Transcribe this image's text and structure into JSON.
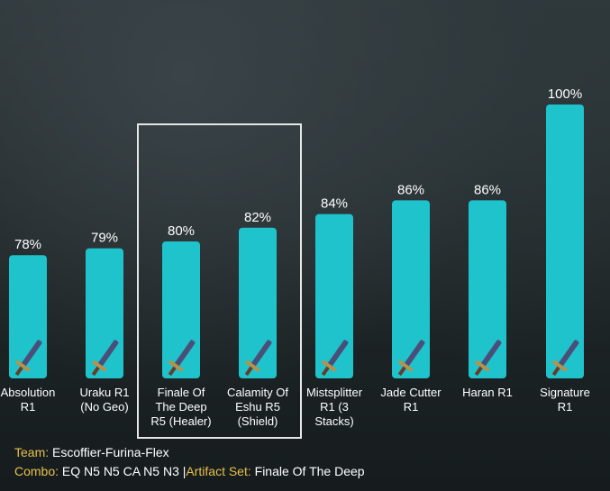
{
  "chart_data": {
    "type": "bar",
    "categories": [
      [
        "Absolution",
        "R1"
      ],
      [
        "Uraku R1",
        "(No Geo)"
      ],
      [
        "Finale Of",
        "The Deep",
        "R5 (Healer)"
      ],
      [
        "Calamity Of",
        "Eshu R5",
        "(Shield)"
      ],
      [
        "Mistsplitter",
        "R1 (3",
        "Stacks)"
      ],
      [
        "Jade Cutter",
        "R1"
      ],
      [
        "Haran R1"
      ],
      [
        "Signature",
        "R1"
      ]
    ],
    "values": [
      78,
      79,
      80,
      82,
      84,
      86,
      86,
      100
    ],
    "data_labels": [
      "78%",
      "79%",
      "80%",
      "82%",
      "84%",
      "86%",
      "86%",
      "100%"
    ],
    "highlighted": [
      2,
      3
    ],
    "bar_color": "#1ec3cc",
    "ylim": [
      0,
      100
    ],
    "weapon_icons": [
      "absolution-sword-icon",
      "uraku-sword-icon",
      "finale-of-the-deep-sword-icon",
      "calamity-of-eshu-sword-icon",
      "mistsplitter-sword-icon",
      "jade-cutter-sword-icon",
      "haran-sword-icon",
      "signature-sword-icon"
    ]
  },
  "footer": {
    "team_label": "Team:",
    "team_value": "Escoffier-Furina-Flex",
    "combo_label": "Combo:",
    "combo_value": "EQ N5 N5 CA N5 N3",
    "separator": "|",
    "artifact_label": "Artifact Set:",
    "artifact_value": "Finale Of The Deep"
  }
}
